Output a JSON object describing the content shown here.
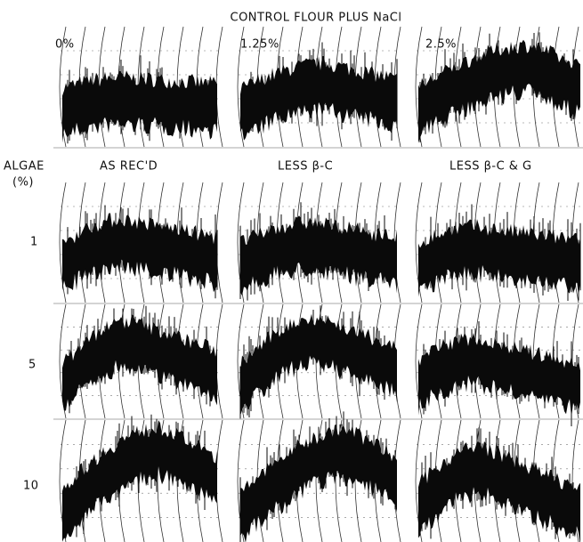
{
  "header": {
    "title": "CONTROL FLOUR PLUS NaCl",
    "panels": [
      "0%",
      "1.25%",
      "2.5%"
    ]
  },
  "algae": {
    "label": "ALGAE",
    "unit": "(%)",
    "columns": [
      "AS REC'D",
      "LESS β-C",
      "LESS β-C & G"
    ],
    "rows": [
      "1",
      "5",
      "10"
    ]
  }
}
